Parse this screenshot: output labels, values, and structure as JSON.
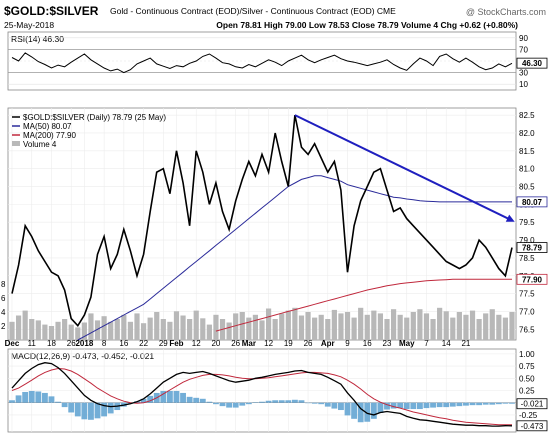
{
  "header": {
    "symbol": "$GOLD:$SILVER",
    "description": "Gold - Continuous Contract (EOD)/Silver - Continuous Contract (EOD) CME",
    "watermark": "@ StockCharts.com",
    "date": "25-May-2018",
    "quote": "Open 78.81  High 79.00  Low 78.53  Close 78.79  Volume 4  Chg +0.62 (+0.80%)",
    "quote_change_color": "#2e8b2e"
  },
  "rsi": {
    "title": "RSI(14) 46.30",
    "value": 46.3,
    "levels": [
      90,
      70,
      50,
      30,
      10
    ],
    "overbought": 70,
    "oversold": 30,
    "value_label": "46.30",
    "values": [
      56,
      50,
      64,
      57,
      49,
      44,
      38,
      43,
      40,
      48,
      55,
      62,
      52,
      45,
      38,
      33,
      36,
      30,
      35,
      45,
      50,
      55,
      45,
      41,
      37,
      42,
      40,
      46,
      50,
      58,
      62,
      55,
      47,
      45,
      40,
      38,
      44,
      40,
      46,
      52,
      48,
      42,
      50,
      55,
      60,
      52,
      47,
      52,
      56,
      60,
      54,
      50,
      48,
      45,
      42,
      45,
      48,
      52,
      44,
      38,
      34,
      45,
      55,
      50,
      42,
      58,
      62,
      54,
      48,
      55,
      48,
      40,
      35,
      38,
      45,
      40,
      46
    ]
  },
  "price": {
    "legend_title": "$GOLD:$SILVER (Daily) 78.79 (25 May)",
    "legend_ma50": "MA(50) 80.07",
    "legend_ma200": "MA(200) 77.90",
    "legend_volume": "Volume 4",
    "price_color": "#000000",
    "ma50_color": "#2b2b9a",
    "ma200_color": "#c0283c",
    "trendline_color": "#1f1fbf",
    "volume_color": "#b8b8b8",
    "ylim": [
      76.2,
      82.7
    ],
    "y_ticks": [
      76.5,
      77.0,
      77.5,
      78.0,
      78.5,
      79.0,
      79.5,
      80.0,
      80.5,
      81.0,
      81.5,
      82.0,
      82.5
    ],
    "y_tick_labels": [
      "76.5",
      "77.0",
      "77.5",
      "78.0",
      "78.5",
      "79.0",
      "79.5",
      "80.0",
      "80.5",
      "81.0",
      "81.5",
      "82.0",
      "82.5"
    ],
    "left_volume_ticks": [
      "8",
      "6",
      "4",
      "2"
    ],
    "close_label": "78.79",
    "ma50_label": "80.07",
    "ma200_label": "77.90",
    "close": [
      77.5,
      78.3,
      79.4,
      79.1,
      78.7,
      78.4,
      78.1,
      78.0,
      77.6,
      76.8,
      76.6,
      76.9,
      77.4,
      78.6,
      79.1,
      78.2,
      78.6,
      79.3,
      78.7,
      78.0,
      78.6,
      79.8,
      80.9,
      81.0,
      80.3,
      81.5,
      80.6,
      79.4,
      81.5,
      80.9,
      80.0,
      80.6,
      79.8,
      79.3,
      80.1,
      80.7,
      81.2,
      80.8,
      81.4,
      80.9,
      82.0,
      81.2,
      80.5,
      82.5,
      81.6,
      81.4,
      81.7,
      81.3,
      80.9,
      81.2,
      80.4,
      78.1,
      79.4,
      80.1,
      80.5,
      80.9,
      81.0,
      80.4,
      79.8,
      79.9,
      79.6,
      79.4,
      79.2,
      79.0,
      78.8,
      78.6,
      78.4,
      78.3,
      78.2,
      78.3,
      78.5,
      79.0,
      78.8,
      78.5,
      78.2,
      78.0,
      78.79
    ],
    "ma50": [
      null,
      null,
      null,
      null,
      null,
      null,
      null,
      null,
      null,
      null,
      76.2,
      76.3,
      76.4,
      76.5,
      76.6,
      76.7,
      76.8,
      76.9,
      77.0,
      77.1,
      77.2,
      77.35,
      77.5,
      77.65,
      77.8,
      77.95,
      78.1,
      78.25,
      78.4,
      78.55,
      78.7,
      78.85,
      79.0,
      79.15,
      79.3,
      79.45,
      79.6,
      79.75,
      79.9,
      80.05,
      80.2,
      80.35,
      80.5,
      80.6,
      80.7,
      80.75,
      80.8,
      80.8,
      80.75,
      80.7,
      80.65,
      80.55,
      80.5,
      80.45,
      80.4,
      80.35,
      80.3,
      80.25,
      80.2,
      80.18,
      80.15,
      80.13,
      80.1,
      80.09,
      80.08,
      80.07,
      80.07,
      80.07,
      80.07,
      80.07,
      80.07,
      80.07,
      80.07,
      80.07,
      80.07,
      80.07,
      80.07
    ],
    "ma200": [
      null,
      null,
      null,
      null,
      null,
      null,
      null,
      null,
      null,
      null,
      null,
      null,
      null,
      null,
      null,
      null,
      null,
      null,
      null,
      null,
      null,
      null,
      null,
      null,
      null,
      null,
      null,
      null,
      null,
      null,
      null,
      76.45,
      76.5,
      76.55,
      76.6,
      76.65,
      76.7,
      76.75,
      76.8,
      76.85,
      76.9,
      76.95,
      77.0,
      77.05,
      77.1,
      77.15,
      77.2,
      77.25,
      77.3,
      77.35,
      77.4,
      77.45,
      77.5,
      77.55,
      77.6,
      77.64,
      77.68,
      77.72,
      77.75,
      77.78,
      77.8,
      77.82,
      77.84,
      77.86,
      77.87,
      77.88,
      77.89,
      77.9,
      77.9,
      77.9,
      77.9,
      77.9,
      77.9,
      77.9,
      77.9,
      77.9,
      77.9
    ],
    "volume": [
      2.6,
      3.5,
      4.2,
      3.0,
      2.8,
      2.2,
      2.0,
      2.6,
      3.0,
      2.2,
      1.8,
      2.5,
      3.8,
      2.8,
      3.4,
      2.6,
      3.0,
      3.6,
      2.6,
      3.8,
      2.4,
      3.2,
      4.0,
      3.0,
      2.6,
      4.1,
      3.5,
      3.0,
      4.2,
      3.1,
      2.2,
      3.6,
      3.0,
      2.5,
      3.8,
      4.0,
      3.2,
      3.6,
      2.8,
      4.5,
      3.0,
      3.8,
      4.2,
      4.6,
      3.5,
      4.0,
      3.2,
      3.6,
      3.0,
      4.3,
      3.8,
      4.0,
      3.2,
      4.6,
      3.6,
      4.2,
      3.8,
      3.0,
      4.4,
      3.6,
      3.2,
      4.0,
      4.4,
      3.8,
      3.0,
      4.6,
      4.1,
      3.2,
      4.0,
      3.6,
      4.2,
      3.0,
      3.8,
      4.4,
      3.6,
      3.2,
      4.0
    ],
    "trendline": {
      "start": [
        43,
        82.5
      ],
      "end": [
        76,
        79.55
      ]
    }
  },
  "macd": {
    "title": "MACD(12,26,9) -0.473, -0.452, -0.021",
    "title_value_color": "#2b6aa8",
    "line_color": "#000000",
    "signal_color": "#c0283c",
    "hist_color": "#5aa0d0",
    "ylim": [
      -0.6,
      1.1
    ],
    "y_ticks": [
      1.0,
      0.75,
      0.5,
      0.25,
      -0.25
    ],
    "y_tick_labels": [
      "1.00",
      "0.75",
      "0.50",
      "0.25",
      "-0.25"
    ],
    "zero_label": "-0.021",
    "value_label": "-0.473",
    "macd": [
      0.3,
      0.45,
      0.6,
      0.7,
      0.78,
      0.82,
      0.8,
      0.72,
      0.6,
      0.45,
      0.3,
      0.15,
      0.05,
      -0.02,
      -0.06,
      -0.08,
      -0.07,
      -0.05,
      -0.02,
      0.02,
      0.08,
      0.18,
      0.3,
      0.42,
      0.5,
      0.58,
      0.62,
      0.6,
      0.62,
      0.64,
      0.6,
      0.55,
      0.5,
      0.45,
      0.42,
      0.44,
      0.46,
      0.5,
      0.52,
      0.55,
      0.58,
      0.6,
      0.62,
      0.65,
      0.66,
      0.62,
      0.6,
      0.58,
      0.52,
      0.45,
      0.38,
      0.2,
      0.05,
      -0.12,
      -0.22,
      -0.25,
      -0.2,
      -0.18,
      -0.2,
      -0.22,
      -0.28,
      -0.32,
      -0.35,
      -0.36,
      -0.38,
      -0.4,
      -0.42,
      -0.44,
      -0.45,
      -0.46,
      -0.46,
      -0.47,
      -0.47,
      -0.48,
      -0.48,
      -0.47,
      -0.473
    ],
    "signal": [
      0.25,
      0.3,
      0.38,
      0.46,
      0.55,
      0.62,
      0.67,
      0.7,
      0.69,
      0.65,
      0.58,
      0.49,
      0.4,
      0.3,
      0.22,
      0.14,
      0.08,
      0.03,
      0.0,
      -0.01,
      0.0,
      0.04,
      0.1,
      0.18,
      0.26,
      0.34,
      0.42,
      0.48,
      0.52,
      0.56,
      0.58,
      0.58,
      0.57,
      0.55,
      0.52,
      0.5,
      0.49,
      0.49,
      0.5,
      0.51,
      0.53,
      0.55,
      0.57,
      0.59,
      0.61,
      0.62,
      0.62,
      0.61,
      0.6,
      0.57,
      0.53,
      0.46,
      0.38,
      0.28,
      0.17,
      0.08,
      0.01,
      -0.04,
      -0.08,
      -0.11,
      -0.15,
      -0.19,
      -0.22,
      -0.25,
      -0.28,
      -0.31,
      -0.33,
      -0.36,
      -0.38,
      -0.4,
      -0.41,
      -0.42,
      -0.43,
      -0.44,
      -0.45,
      -0.45,
      -0.452
    ]
  },
  "x_axis": {
    "labels": [
      {
        "i": 0,
        "text": "Dec",
        "bold": true
      },
      {
        "i": 3,
        "text": "11",
        "bold": false
      },
      {
        "i": 6,
        "text": "18",
        "bold": false
      },
      {
        "i": 9,
        "text": "26",
        "bold": false
      },
      {
        "i": 11,
        "text": "2018",
        "bold": true
      },
      {
        "i": 14,
        "text": "8",
        "bold": false
      },
      {
        "i": 17,
        "text": "16",
        "bold": false
      },
      {
        "i": 20,
        "text": "22",
        "bold": false
      },
      {
        "i": 23,
        "text": "29",
        "bold": false
      },
      {
        "i": 25,
        "text": "Feb",
        "bold": true
      },
      {
        "i": 28,
        "text": "12",
        "bold": false
      },
      {
        "i": 31,
        "text": "20",
        "bold": false
      },
      {
        "i": 34,
        "text": "26",
        "bold": false
      },
      {
        "i": 36,
        "text": "Mar",
        "bold": true
      },
      {
        "i": 39,
        "text": "12",
        "bold": false
      },
      {
        "i": 42,
        "text": "19",
        "bold": false
      },
      {
        "i": 45,
        "text": "26",
        "bold": false
      },
      {
        "i": 48,
        "text": "Apr",
        "bold": true
      },
      {
        "i": 51,
        "text": "9",
        "bold": false
      },
      {
        "i": 54,
        "text": "16",
        "bold": false
      },
      {
        "i": 57,
        "text": "23",
        "bold": false
      },
      {
        "i": 60,
        "text": "May",
        "bold": true
      },
      {
        "i": 63,
        "text": "7",
        "bold": false
      },
      {
        "i": 66,
        "text": "14",
        "bold": false
      },
      {
        "i": 69,
        "text": "21",
        "bold": false
      }
    ]
  }
}
